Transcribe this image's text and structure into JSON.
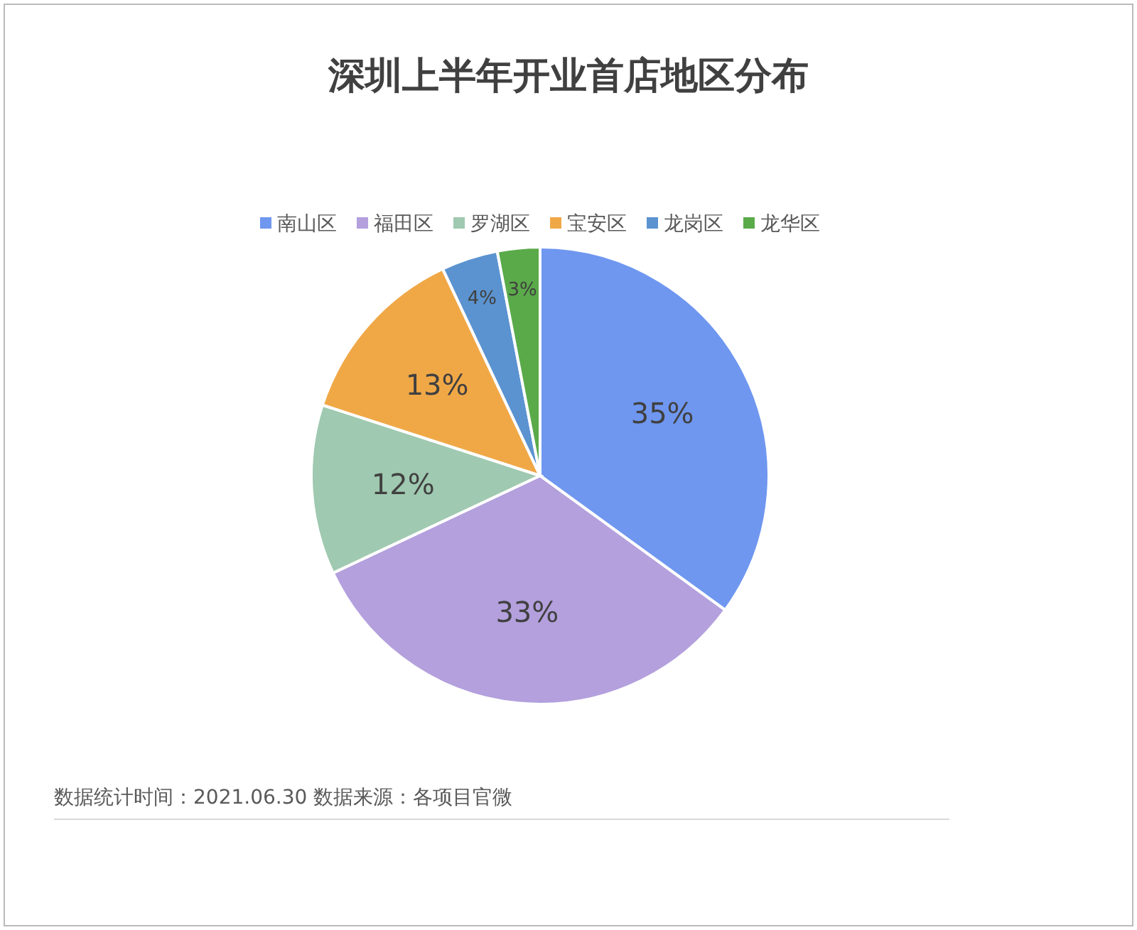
{
  "chart_data": {
    "type": "pie",
    "title": "深圳上半年开业首店地区分布",
    "categories": [
      "南山区",
      "福田区",
      "罗湖区",
      "宝安区",
      "龙岗区",
      "龙华区"
    ],
    "values": [
      35,
      33,
      12,
      13,
      4,
      3
    ],
    "value_labels": [
      "35%",
      "33%",
      "12%",
      "13%",
      "4%",
      "3%"
    ],
    "colors": [
      "#6f97f0",
      "#b3a0dd",
      "#9fc9b0",
      "#f0a847",
      "#5b93d0",
      "#5aaa4a"
    ],
    "legend": "top",
    "annotations": [
      "数据统计时间：2021.06.30  数据来源：各项目官微"
    ]
  }
}
